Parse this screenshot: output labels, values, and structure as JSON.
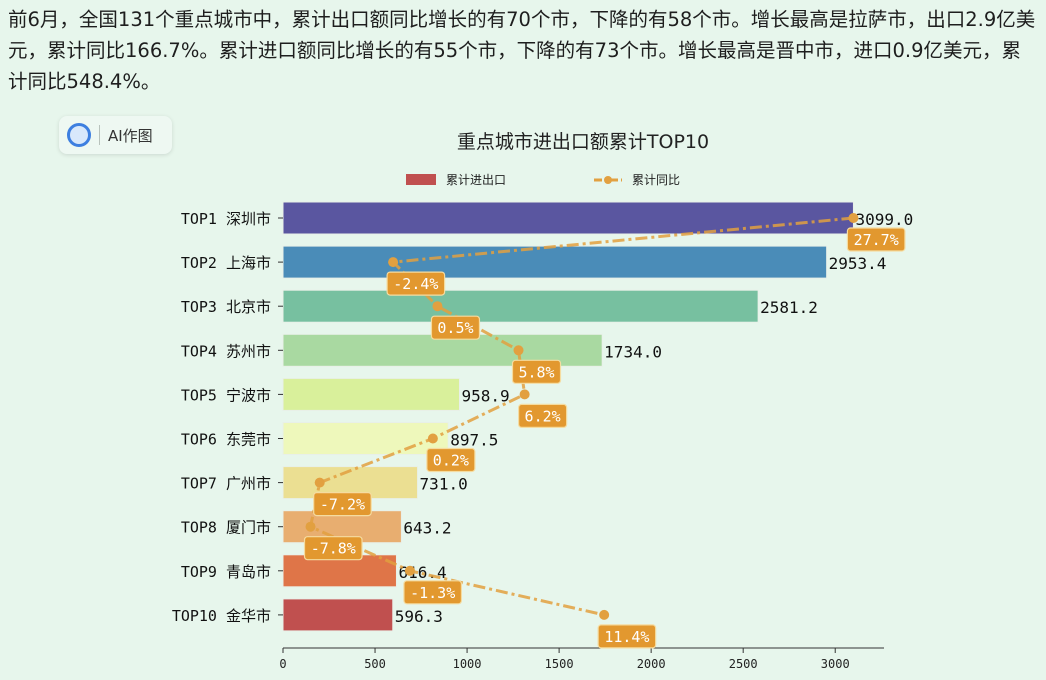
{
  "summary": "前6月，全国131个重点城市中，累计出口额同比增长的有70个市，下降的有58个市。增长最高是拉萨市，出口2.9亿美元，累计同比166.7%。累计进口额同比增长的有55个市，下降的有73个市。增长最高是晋中市，进口0.9亿美元，累计同比548.4%。",
  "ai_button": {
    "label": "AI作图",
    "icon": "ai-chart-icon"
  },
  "chart_data": {
    "type": "bar+line",
    "orientation": "horizontal",
    "title": "重点城市进出口额累计TOP10",
    "legend": {
      "placement": "top",
      "entries": [
        "累计进出口",
        "累计同比"
      ]
    },
    "categories": [
      "TOP1 深圳市",
      "TOP2 上海市",
      "TOP3 北京市",
      "TOP4 苏州市",
      "TOP5 宁波市",
      "TOP6 东莞市",
      "TOP7 广州市",
      "TOP8 厦门市",
      "TOP9 青岛市",
      "TOP10 金华市"
    ],
    "series": [
      {
        "name": "累计进出口",
        "type": "bar",
        "values": [
          3099.0,
          2953.4,
          2581.2,
          1734.0,
          958.9,
          897.5,
          731.0,
          643.2,
          616.4,
          596.3
        ],
        "colors": [
          "#5a56a0",
          "#4a8cb8",
          "#77c0a0",
          "#a9d9a1",
          "#d9f09b",
          "#eef8bb",
          "#ebdf92",
          "#e8ae70",
          "#df7548",
          "#c0504f"
        ]
      },
      {
        "name": "累计同比",
        "type": "line",
        "values": [
          27.7,
          -2.4,
          0.5,
          5.8,
          6.2,
          0.2,
          -7.2,
          -7.8,
          -1.3,
          11.4
        ],
        "unit": "%",
        "color": "#e2a040",
        "style": "dash-dot",
        "secondary_xlim": [
          -9.6,
          29.7
        ]
      }
    ],
    "xaxis": {
      "ticks": [
        0,
        500,
        1000,
        1500,
        2000,
        2500,
        3000
      ],
      "xlim": [
        0,
        3265
      ]
    },
    "grid": false
  }
}
